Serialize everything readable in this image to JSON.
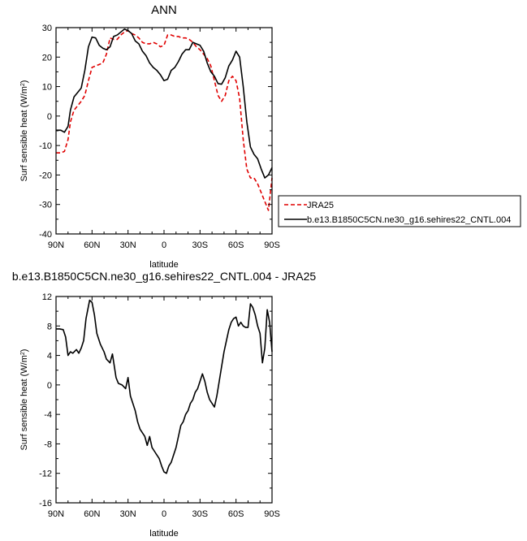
{
  "chart_data": [
    {
      "type": "line",
      "title": "ANN",
      "xlabel": "latitude",
      "ylabel": "Surf sensible heat (W/m²)",
      "ylabel_base": "Surf sensible heat (W/m",
      "ylabel_sup": "2",
      "ylabel_close": ")",
      "xlim": [
        90,
        -90
      ],
      "ylim": [
        -40,
        30
      ],
      "xticks": [
        90,
        60,
        30,
        0,
        -30,
        -60,
        -90
      ],
      "xtick_labels": [
        "90N",
        "60N",
        "30N",
        "0",
        "30S",
        "60S",
        "90S"
      ],
      "yticks": [
        30,
        20,
        10,
        0,
        -10,
        -20,
        -30,
        -40
      ],
      "ytick_labels": [
        "30",
        "20",
        "10",
        "0",
        "-10",
        "-20",
        "-30",
        "-40"
      ],
      "grid": false,
      "legend_position": "right",
      "series": [
        {
          "name": "JRA25",
          "color": "#e00000",
          "dash": "dashed",
          "x": [
            90,
            86,
            83,
            80,
            78,
            75,
            72,
            69,
            66,
            63,
            60,
            57,
            54,
            51,
            48,
            45,
            42,
            39,
            36,
            33,
            30,
            27,
            24,
            21,
            18,
            15,
            12,
            9,
            6,
            3,
            0,
            -3,
            -6,
            -9,
            -12,
            -15,
            -18,
            -21,
            -24,
            -27,
            -30,
            -33,
            -36,
            -39,
            -42,
            -45,
            -48,
            -51,
            -54,
            -57,
            -60,
            -63,
            -66,
            -69,
            -72,
            -75,
            -78,
            -81,
            -84,
            -87,
            -90
          ],
          "values": [
            -12.5,
            -12.5,
            -12,
            -8,
            -2,
            2,
            3.5,
            5,
            7,
            12,
            16.5,
            17,
            17.5,
            18,
            21,
            26.5,
            26,
            26,
            27.5,
            28.5,
            29,
            28,
            27.5,
            26.5,
            25,
            24.5,
            24.5,
            25,
            24.5,
            23.5,
            24,
            27.5,
            27.5,
            27,
            27,
            26.5,
            26.5,
            26,
            25,
            23.5,
            22.5,
            21,
            19.5,
            17,
            12,
            7,
            5,
            7,
            12,
            13.5,
            12,
            6,
            -8,
            -18,
            -21,
            -21,
            -23,
            -26,
            -29,
            -32,
            -21
          ]
        },
        {
          "name": "b.e13.B1850C5CN.ne30_g16.sehires22_CNTL.004",
          "color": "#000000",
          "dash": "solid",
          "x": [
            90,
            86,
            83,
            80,
            78,
            75,
            72,
            69,
            66,
            63,
            60,
            57,
            54,
            51,
            48,
            45,
            42,
            39,
            36,
            33,
            30,
            27,
            24,
            21,
            18,
            15,
            12,
            9,
            6,
            3,
            0,
            -3,
            -6,
            -9,
            -12,
            -15,
            -18,
            -21,
            -24,
            -27,
            -30,
            -33,
            -36,
            -39,
            -42,
            -45,
            -48,
            -51,
            -54,
            -57,
            -60,
            -63,
            -66,
            -69,
            -72,
            -75,
            -78,
            -81,
            -84,
            -87,
            -90
          ],
          "values": [
            -4.8,
            -4.8,
            -5.5,
            -3.5,
            2,
            6.5,
            8,
            9.5,
            15.5,
            23.5,
            26.8,
            26.5,
            24,
            23,
            22.5,
            23.5,
            27,
            27.5,
            28.5,
            29.5,
            29,
            28,
            25.5,
            24.5,
            22,
            20.5,
            18,
            16.5,
            15.5,
            14,
            12,
            12.5,
            15.5,
            16.5,
            18.5,
            21,
            22.5,
            22.5,
            25,
            24.5,
            24,
            22,
            18,
            15,
            13.5,
            11,
            10.8,
            13,
            17,
            19,
            22,
            20,
            10,
            -2,
            -10.5,
            -13,
            -14.5,
            -18,
            -21,
            -20,
            -17.5
          ]
        }
      ]
    },
    {
      "type": "line",
      "title": "b.e13.B1850C5CN.ne30_g16.sehires22_CNTL.004 - JRA25",
      "xlabel": "latitude",
      "ylabel": "Surf sensible heat (W/m²)",
      "ylabel_base": "Surf sensible heat (W/m",
      "ylabel_sup": "2",
      "ylabel_close": ")",
      "xlim": [
        90,
        -90
      ],
      "ylim": [
        -16,
        12
      ],
      "xticks": [
        90,
        60,
        30,
        0,
        -30,
        -60,
        -90
      ],
      "xtick_labels": [
        "90N",
        "60N",
        "30N",
        "0",
        "30S",
        "60S",
        "90S"
      ],
      "yticks": [
        12,
        8,
        4,
        0,
        -4,
        -8,
        -12,
        -16
      ],
      "ytick_labels": [
        "12",
        "8",
        "4",
        "0",
        "-4",
        "-8",
        "-12",
        "-16"
      ],
      "grid": false,
      "series": [
        {
          "color": "#000000",
          "dash": "solid",
          "x": [
            90,
            87,
            84,
            82,
            80,
            78,
            76,
            73,
            71,
            69,
            67,
            65,
            62,
            60,
            58,
            56,
            53,
            50,
            48,
            45,
            43,
            40,
            38,
            35,
            32,
            30,
            28,
            26,
            24,
            22,
            20,
            18,
            16,
            14,
            12,
            10,
            8,
            6,
            4,
            2,
            0,
            -2,
            -4,
            -6,
            -8,
            -10,
            -12,
            -14,
            -16,
            -18,
            -20,
            -22,
            -24,
            -26,
            -28,
            -30,
            -32,
            -34,
            -36,
            -38,
            -40,
            -42,
            -44,
            -46,
            -48,
            -50,
            -52,
            -54,
            -56,
            -58,
            -60,
            -62,
            -64,
            -66,
            -68,
            -70,
            -72,
            -74,
            -76,
            -78,
            -80,
            -82,
            -84,
            -86,
            -88,
            -90
          ],
          "values": [
            7.6,
            7.6,
            7.5,
            6.5,
            4.0,
            4.5,
            4.3,
            4.8,
            4.3,
            5.0,
            6.0,
            9.0,
            11.5,
            11.2,
            9.5,
            7.0,
            5.5,
            4.5,
            3.5,
            3.0,
            4.2,
            1.0,
            0.2,
            0.0,
            -0.5,
            1.0,
            -1.5,
            -2.5,
            -3.5,
            -5.0,
            -6.0,
            -6.5,
            -7.0,
            -8.2,
            -7.0,
            -8.5,
            -9.0,
            -9.5,
            -10.0,
            -11.0,
            -11.8,
            -12.0,
            -11.0,
            -10.5,
            -9.5,
            -8.5,
            -7.0,
            -5.5,
            -5.0,
            -4.0,
            -3.5,
            -2.5,
            -2.0,
            -1.0,
            -0.5,
            0.5,
            1.5,
            0.5,
            -1.0,
            -2.0,
            -2.5,
            -3.0,
            -1.5,
            0.5,
            2.5,
            4.5,
            6.0,
            7.5,
            8.5,
            9.0,
            9.2,
            8.0,
            8.5,
            8.0,
            7.8,
            7.8,
            11.0,
            10.5,
            9.5,
            8.0,
            7.0,
            3.0,
            5.0,
            10.2,
            8.5,
            4.5
          ]
        }
      ]
    }
  ]
}
